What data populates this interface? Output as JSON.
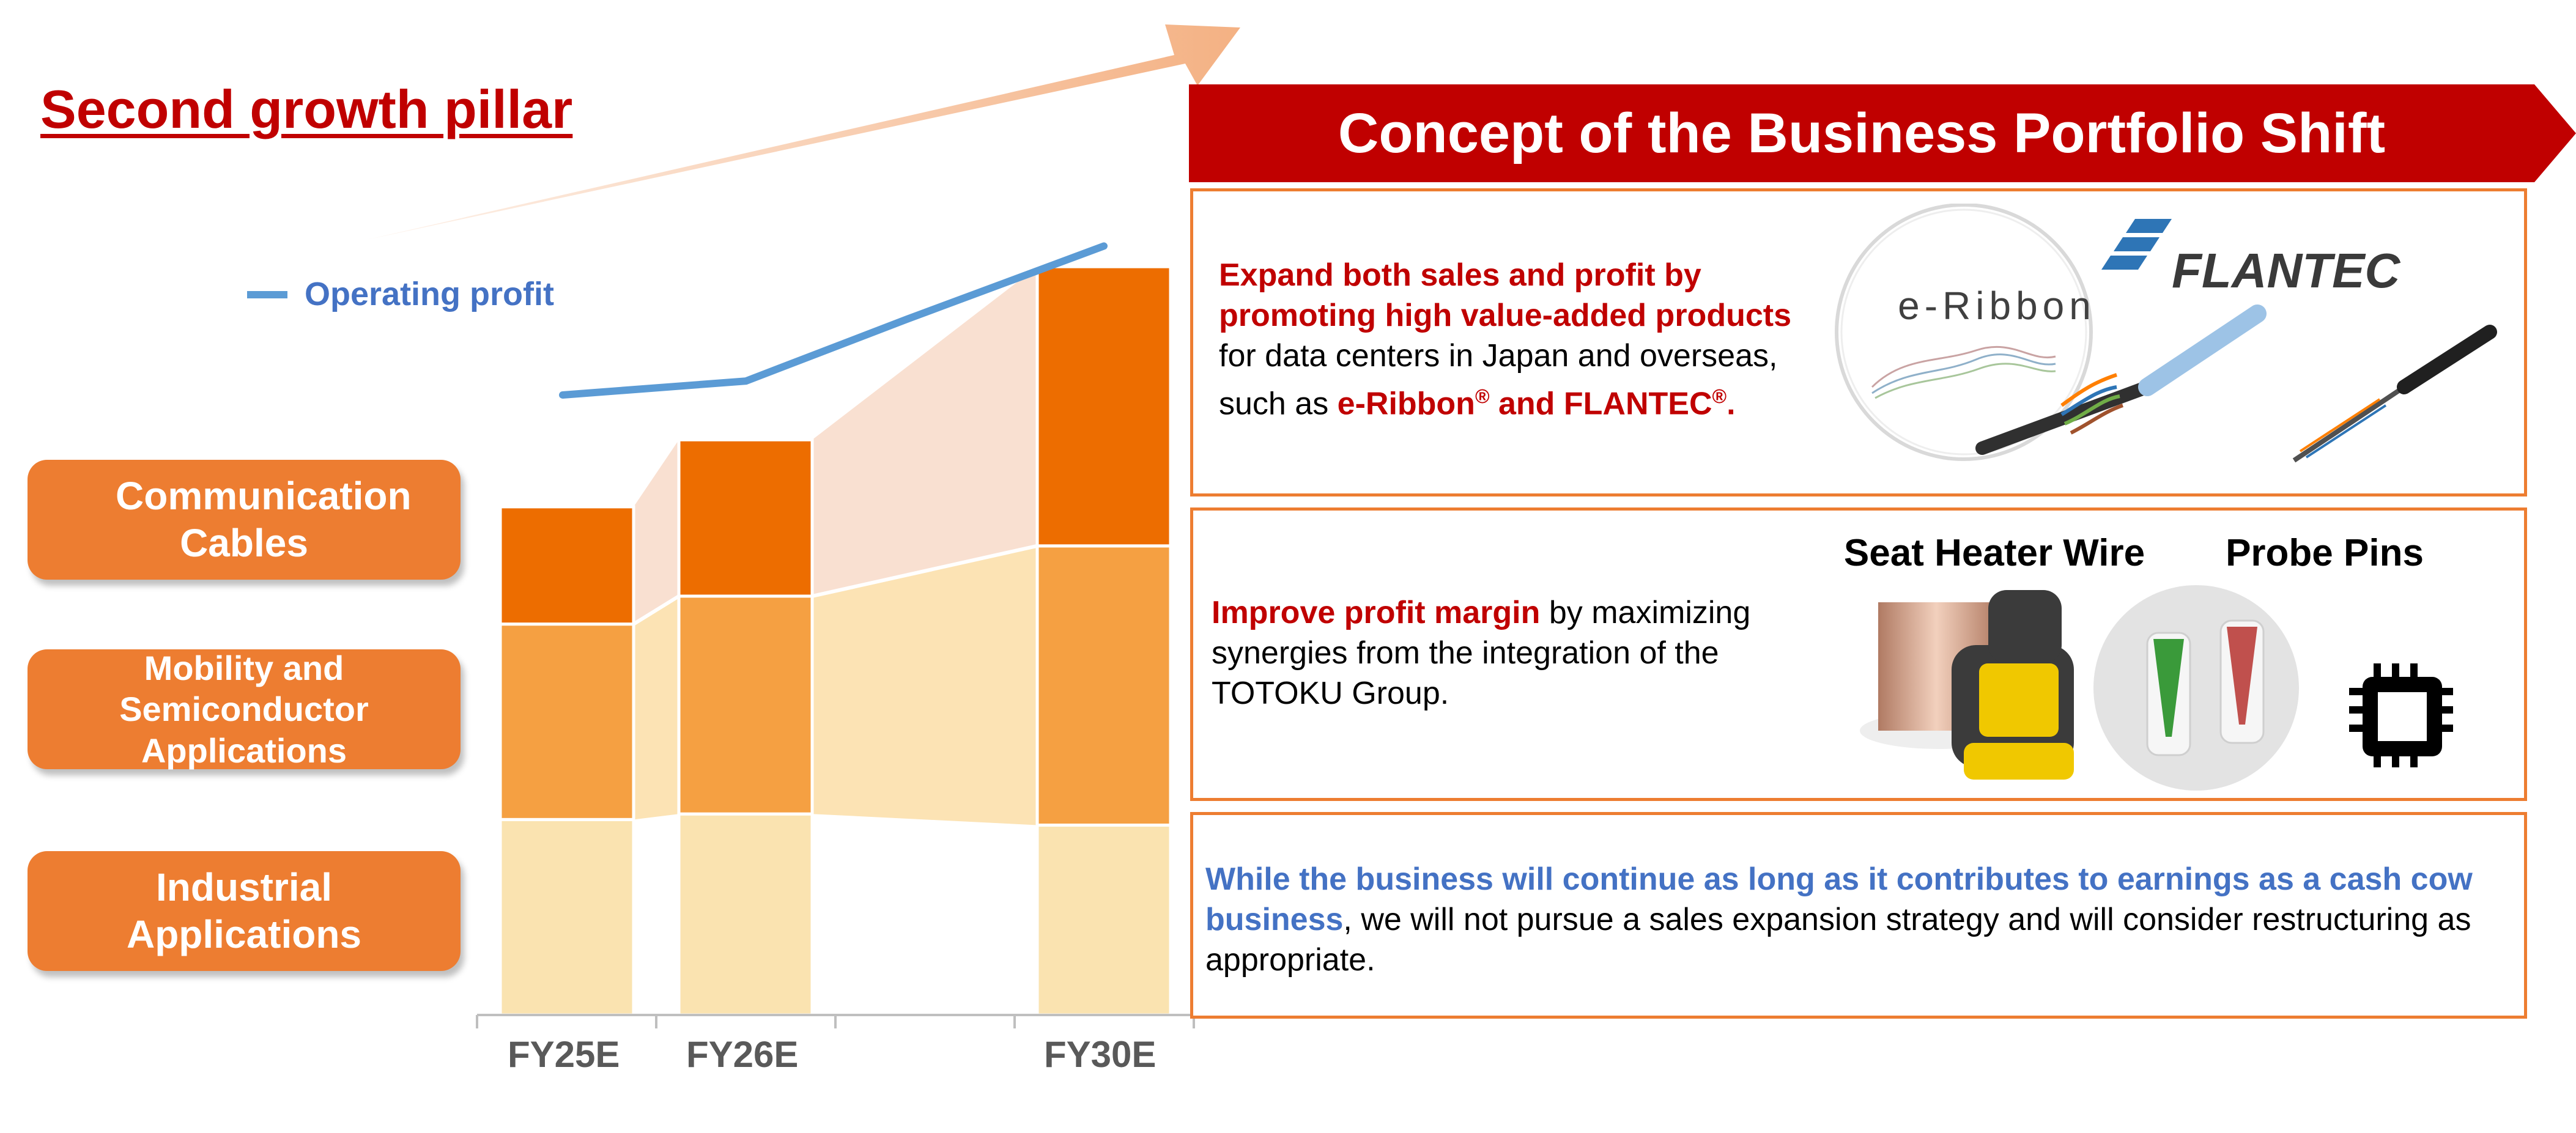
{
  "title": "Second growth pillar",
  "colors": {
    "title_red": "#c00000",
    "accent_orange": "#ed7d31",
    "communication": "#ed6d00",
    "mobility": "#f5a042",
    "industrial": "#fae3b0",
    "operating_profit": "#5b9bd5",
    "banner": "#c00000"
  },
  "segment_labels": {
    "communication": "Communication Cables",
    "mobility": "Mobility and Semiconductor Applications",
    "industrial": "Industrial Applications"
  },
  "chart_data": {
    "type": "bar",
    "stacked": true,
    "categories": [
      "FY25E",
      "FY26E",
      "",
      "FY30E"
    ],
    "series": [
      {
        "name": "Industrial Applications",
        "values": [
          35,
          36,
          null,
          34
        ]
      },
      {
        "name": "Mobility and Semiconductor Applications",
        "values": [
          35,
          39,
          null,
          50
        ]
      },
      {
        "name": "Communication Cables",
        "values": [
          21,
          28,
          null,
          50
        ]
      }
    ],
    "line_series": {
      "name": "Operating profit",
      "values": [
        20,
        24,
        35,
        48
      ],
      "x_positions": [
        0,
        1,
        1.9,
        3
      ]
    },
    "xlabel": "",
    "ylabel": "",
    "ylim": [
      0,
      150
    ],
    "grid": false,
    "legend": "Operating profit"
  },
  "banner": {
    "title": "Concept of the Business Portfolio Shift"
  },
  "panels": {
    "communication": {
      "red_lead": "Expand both sales and profit by promoting high value-added products",
      "body": " for data centers in Japan and overseas, such as ",
      "brands_a": "e-Ribbon",
      "reg": "®",
      "and_text": " and ",
      "brands_b": "FLANTEC",
      "end": ".",
      "logo_eribbon": "e-Ribbon",
      "logo_flantec": "FLANTEC"
    },
    "mobility": {
      "red_lead": "Improve profit margin",
      "body": " by maximizing synergies from the integration of the TOTOKU Group.",
      "product_a": "Seat Heater Wire",
      "product_b": "Probe Pins"
    },
    "industrial": {
      "blue_lead": "While the business will continue as long as it contributes to earnings as a cash cow business",
      "body": ", we will not pursue a sales expansion strategy and will consider restructuring as appropriate."
    }
  }
}
